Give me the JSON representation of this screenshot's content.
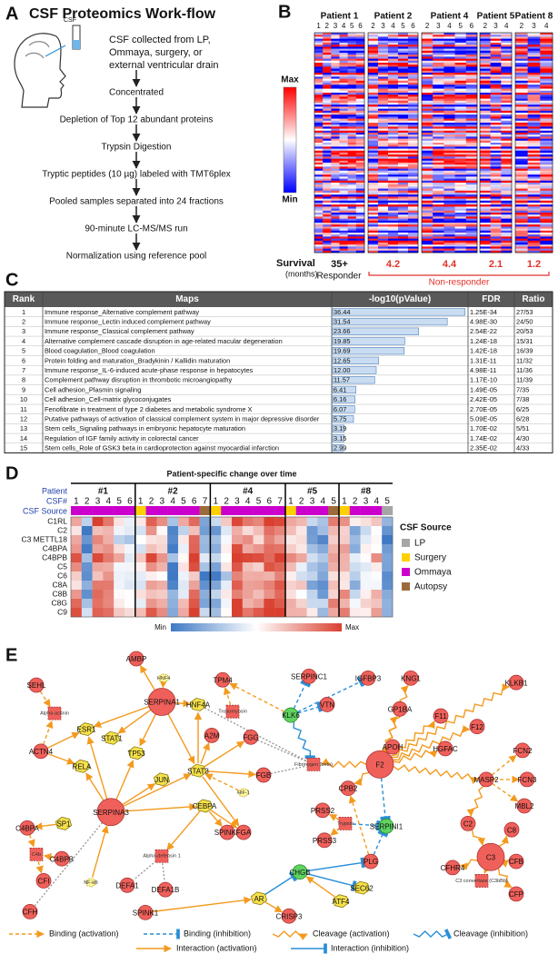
{
  "panel_a": {
    "letter": "A",
    "title": "CSF Proteomics Work-flow",
    "tube_label": "CSF",
    "steps": [
      [
        "CSF collected from LP,",
        "Ommaya, surgery, or",
        "external ventricular drain"
      ],
      [
        "Concentrated"
      ],
      [
        "Depletion of Top 12 abundant proteins"
      ],
      [
        "Trypsin Digestion"
      ],
      [
        "Tryptic peptides (10 µg) labeled with TMT6plex"
      ],
      [
        "Pooled samples separated into 24 fractions"
      ],
      [
        "90-minute LC-MS/MS run"
      ],
      [
        "Normalization using reference pool"
      ]
    ]
  },
  "panel_b": {
    "letter": "B",
    "scale_max": "Max",
    "scale_min": "Min",
    "survival_label": "Survival",
    "survival_unit": "(months)",
    "responder": "Responder",
    "non_responder": "Non-responder",
    "patients": [
      {
        "name": "Patient 1",
        "samples": [
          1,
          2,
          3,
          4,
          5,
          6
        ],
        "survival": "35+"
      },
      {
        "name": "Patient 2",
        "samples": [
          2,
          3,
          4,
          5,
          6
        ],
        "survival": "4.2"
      },
      {
        "name": "Patient 4",
        "samples": [
          2,
          3,
          4,
          5,
          6
        ],
        "survival": "4.4"
      },
      {
        "name": "Patient 5",
        "samples": [
          2,
          3,
          4
        ],
        "survival": "2.1"
      },
      {
        "name": "Patient 8",
        "samples": [
          2,
          3,
          4
        ],
        "survival": "1.2"
      }
    ]
  },
  "panel_c": {
    "letter": "C",
    "columns": [
      "Rank",
      "Maps",
      "-log10(pValue)",
      "FDR",
      "Ratio"
    ],
    "rows": [
      [
        "1",
        "Immune response_Alternative complement pathway",
        "36.44",
        "1.25E-34",
        "27/53"
      ],
      [
        "2",
        "Immune response_Lectin induced complement pathway",
        "31.54",
        "4.98E-30",
        "24/50"
      ],
      [
        "3",
        "Immune response_Classical complement pathway",
        "23.66",
        "2.54E-22",
        "20/53"
      ],
      [
        "4",
        "Alternative complement cascade disruption in age-related macular degeneration",
        "19.85",
        "1.24E-18",
        "15/31"
      ],
      [
        "5",
        "Blood coagulation_Blood coagulation",
        "19.69",
        "1.42E-18",
        "16/39"
      ],
      [
        "6",
        "Protein folding and maturation_Bradykinin / Kallidin maturation",
        "12.65",
        "1.31E-11",
        "11/32"
      ],
      [
        "7",
        "Immune response_IL-6-induced acute-phase response in hepatocytes",
        "12.00",
        "4.98E-11",
        "11/36"
      ],
      [
        "8",
        "Complement pathway disruption in thrombotic microangiopathy",
        "11.57",
        "1.17E-10",
        "11/39"
      ],
      [
        "9",
        "Cell adhesion_Plasmin signaling",
        "6.41",
        "1.49E-05",
        "7/35"
      ],
      [
        "10",
        "Cell adhesion_Cell-matrix glycoconjugates",
        "6.16",
        "2.42E-05",
        "7/38"
      ],
      [
        "11",
        "Fenofibrate in treatment of type 2 diabetes and metabolic syndrome X",
        "6.07",
        "2.70E-05",
        "6/25"
      ],
      [
        "12",
        "Putative pathways of activation of classical complement system in major depressive disorder",
        "5.75",
        "5.09E-05",
        "6/28"
      ],
      [
        "13",
        "Stem cells_Signaling pathways in embryonic hepatocyte maturation",
        "3.19",
        "1.70E-02",
        "5/51"
      ],
      [
        "14",
        "Regulation of IGF family activity in colorectal cancer",
        "3.15",
        "1.74E-02",
        "4/30"
      ],
      [
        "15",
        "Stem cells_Role of GSK3 beta in cardioprotection against myocardial infarction",
        "2.99",
        "2.35E-02",
        "4/33"
      ]
    ]
  },
  "panel_d": {
    "letter": "D",
    "title": "Patient-specific change over time",
    "row_labels": [
      "Patient",
      "CSF#",
      "CSF Source"
    ],
    "patients": [
      {
        "name": "#1",
        "samples": [
          1,
          2,
          3,
          4,
          5,
          6
        ],
        "sources": [
          2,
          2,
          2,
          2,
          2,
          2
        ]
      },
      {
        "name": "#2",
        "samples": [
          1,
          2,
          3,
          4,
          5,
          6,
          7
        ],
        "sources": [
          1,
          2,
          2,
          2,
          2,
          2,
          3
        ]
      },
      {
        "name": "#4",
        "samples": [
          1,
          2,
          3,
          4,
          5,
          6,
          7
        ],
        "sources": [
          1,
          2,
          2,
          2,
          2,
          2,
          2
        ]
      },
      {
        "name": "#5",
        "samples": [
          1,
          2,
          3,
          4,
          5
        ],
        "sources": [
          1,
          2,
          2,
          2,
          3
        ]
      },
      {
        "name": "#8",
        "samples": [
          1,
          2,
          3,
          4,
          5
        ],
        "sources": [
          1,
          2,
          2,
          2,
          0
        ]
      }
    ],
    "genes": [
      "C1RL",
      "C2",
      "C3 METTL18",
      "C4BPA",
      "C4BPB",
      "C5",
      "C6",
      "C8A",
      "C8B",
      "C8G",
      "C9"
    ],
    "legend_title": "CSF Source",
    "sources": [
      {
        "name": "LP",
        "color": "#a6a6a6"
      },
      {
        "name": "Surgery",
        "color": "#ffd000"
      },
      {
        "name": "Ommaya",
        "color": "#cc00cc"
      },
      {
        "name": "Autopsy",
        "color": "#9c6b3c"
      }
    ],
    "scale_min": "Min",
    "scale_max": "Max"
  },
  "panel_e": {
    "letter": "E",
    "nodes": [
      "AMBP",
      "HNF4",
      "SEHL",
      "Alpha-actinin",
      "ESR1",
      "STAT1",
      "TP53",
      "SERPINA1",
      "HNF4A",
      "A2M",
      "JUN",
      "STAT3",
      "ACTN4",
      "RELA",
      "SERPINA3",
      "CEBPA",
      "SPINK5",
      "FGA",
      "FGG",
      "FGB",
      "HIF-1",
      "TPM4",
      "Tropomyosin",
      "SERPINC1",
      "KLK6",
      "VTN",
      "IGFBP3",
      "Fibrinogen (beta)",
      "KNG1",
      "KLKB1",
      "GP1BA",
      "F11",
      "F12",
      "APOH",
      "HGFAC",
      "F2",
      "FCN2",
      "FCN3",
      "MASP2",
      "MBL2",
      "CPB2",
      "PRSS2",
      "Trypsin",
      "PRSS3",
      "SERPINI1",
      "C2",
      "C8",
      "C3",
      "CFB",
      "CFHR4",
      "C3 convertase (C3bBb)",
      "CFP",
      "PLG",
      "CHGB",
      "SEC62",
      "ATF4",
      "AR",
      "CRISP3",
      "SPINK1",
      "NF-kB",
      "Alpha-defensin 1",
      "DEFA1",
      "DEFA1B",
      "C4BPA",
      "SP1",
      "C4b",
      "C4BPB",
      "CFI",
      "CFH"
    ],
    "legend": [
      "Binding (activation)",
      "Binding (inhibition)",
      "Cleavage (activation)",
      "Cleavage (inhibition)",
      "Interaction (activation)",
      "Interaction (inhibition)"
    ]
  }
}
